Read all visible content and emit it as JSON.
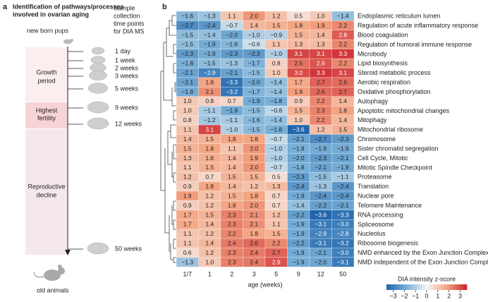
{
  "panel_a": {
    "label": "a",
    "title": [
      "Identification of pathways/processes",
      "involved in ovarian aging"
    ],
    "newborn": "new born pups",
    "sample_label": [
      "Sample",
      "collection",
      "time points",
      "for DIA MS"
    ],
    "timepoints": [
      "1 day",
      "1 week",
      "2 weeks",
      "3 weeks",
      "5 weeks",
      "9 weeks",
      "12 weeks",
      "50 weeks"
    ],
    "phases": [
      [
        "Growth",
        "period"
      ],
      [
        "Highest",
        "fertility"
      ],
      [
        "Reproductive",
        "decline"
      ]
    ],
    "old": "old animals"
  },
  "chart_data": {
    "type": "heatmap",
    "panel_label": "b",
    "x_label": "age (weeks)",
    "categories": [
      "1/7",
      "1",
      "2",
      "3",
      "5",
      "9",
      "12",
      "50"
    ],
    "rows": [
      "Endoplasmic reticulum lumen",
      "Regulation of acute inflammatory response",
      "Blood coagulation",
      "Regulation of humoral immune response",
      "Microbody",
      "Lipid biosynthesis",
      "Steroid metabolic process",
      "Aerobic respiration",
      "Oxidative phosphorylation",
      "Autophagy",
      "Apoptotic mitochondrial changes",
      "Mitophagy",
      "Mitochondrial ribosome",
      "Chromosome",
      "Sister chromatid segregation",
      "Cell Cycle, Mitotic",
      "Mitotic Spindle Checkpoint",
      "Proteasome",
      "Translation",
      "Nuclear pore",
      "Telomere Maintenance",
      "RNA processing",
      "Spliceosome",
      "Nucleolus",
      "Ribosome biogenesis",
      "NMD enhanced by the Exon Junction Complex",
      "NMD independent of the Exon Junction Complex"
    ],
    "values": [
      [
        -1.6,
        -1.3,
        1.1,
        2.0,
        1.2,
        0.5,
        1.0,
        -1.4
      ],
      [
        -2.7,
        -2.4,
        -0.7,
        1.4,
        1.5,
        1.8,
        1.9,
        2.2
      ],
      [
        -1.5,
        -1.4,
        -2.0,
        -1.0,
        -0.9,
        1.5,
        1.4,
        2.8
      ],
      [
        -1.5,
        -1.9,
        -1.6,
        -0.6,
        1.1,
        1.3,
        1.3,
        2.2
      ],
      [
        -2.3,
        -1.9,
        -2.3,
        -2.3,
        -1.0,
        3.1,
        3.1,
        3.3
      ],
      [
        -1.8,
        -1.5,
        -1.3,
        -1.7,
        0.8,
        2.5,
        2.9,
        2.2
      ],
      [
        -2.1,
        -2.9,
        -2.1,
        -1.5,
        1.0,
        3.0,
        3.3,
        3.1
      ],
      [
        -2.1,
        1.8,
        -3.3,
        -2.0,
        -1.4,
        1.7,
        2.7,
        2.6
      ],
      [
        -1.9,
        2.1,
        -3.2,
        -1.7,
        -1.4,
        1.9,
        2.6,
        2.7
      ],
      [
        1.0,
        0.8,
        0.7,
        -1.9,
        -1.8,
        0.9,
        2.2,
        1.4
      ],
      [
        1.0,
        -1.1,
        -1.9,
        -1.5,
        -0.8,
        1.5,
        2.3,
        1.8
      ],
      [
        0.8,
        -1.2,
        -1.1,
        -1.6,
        -1.4,
        1.0,
        2.2,
        1.4
      ],
      [
        1.1,
        3.1,
        -1.0,
        -1.5,
        -1.8,
        -3.6,
        1.2,
        1.5
      ],
      [
        1.4,
        1.5,
        1.8,
        1.8,
        -0.7,
        -2.1,
        -2.7,
        -2.3
      ],
      [
        1.5,
        1.8,
        1.1,
        2.0,
        -1.0,
        -1.8,
        -1.9,
        -1.9
      ],
      [
        1.3,
        1.6,
        1.4,
        1.9,
        -1.0,
        -2.0,
        -2.3,
        -2.1
      ],
      [
        1.1,
        1.5,
        1.4,
        2.0,
        -0.7,
        -1.8,
        -2.1,
        -1.9
      ],
      [
        1.2,
        0.7,
        1.5,
        1.5,
        0.5,
        -2.3,
        -1.5,
        -1.1
      ],
      [
        0.9,
        1.8,
        1.4,
        1.2,
        1.3,
        -2.4,
        -1.3,
        -2.4
      ],
      [
        1.9,
        1.2,
        1.5,
        1.8,
        0.7,
        -1.9,
        -2.4,
        -2.4
      ],
      [
        0.9,
        1.2,
        1.8,
        2.0,
        0.7,
        -1.4,
        -2.2,
        -2.1
      ],
      [
        1.7,
        1.5,
        2.3,
        2.1,
        1.2,
        -2.2,
        -3.6,
        -3.3
      ],
      [
        1.7,
        1.4,
        2.3,
        2.1,
        1.1,
        -1.9,
        -3.1,
        -3.0
      ],
      [
        1.1,
        1.2,
        2.2,
        1.8,
        1.5,
        -1.9,
        -2.9,
        -2.8
      ],
      [
        1.1,
        1.4,
        2.4,
        2.6,
        2.2,
        -2.2,
        -3.1,
        -3.2
      ],
      [
        0.6,
        1.2,
        2.3,
        2.4,
        2.7,
        -1.9,
        -2.1,
        -3.0
      ],
      [
        -1.3,
        1.0,
        2.3,
        2.4,
        2.9,
        -1.9,
        -2.0,
        -3.1
      ]
    ],
    "value_labels": [
      [
        "−1.6",
        "−1.3",
        "1.1",
        "2.0",
        "1.2",
        "0.5",
        "1.0",
        "−1.4"
      ],
      [
        "−2.7",
        "−2.4",
        "−0.7",
        "1.4",
        "1.5",
        "1.8",
        "1.9",
        "2.2"
      ],
      [
        "−1.5",
        "−1.4",
        "−2.0",
        "−1.0",
        "−0.9",
        "1.5",
        "1.4",
        "2.8"
      ],
      [
        "−1.5",
        "−1.9",
        "−1.6",
        "−0.6",
        "1.1",
        "1.3",
        "1.3",
        "2.2"
      ],
      [
        "−2.3",
        "−1.9",
        "−2.3",
        "−2.3",
        "−1.0",
        "3.1",
        "3.1",
        "3.3"
      ],
      [
        "−1.8",
        "−1.5",
        "−1.3",
        "−1.7",
        "0.8",
        "2.5",
        "2.9",
        "2.2"
      ],
      [
        "−2.1",
        "−2.9",
        "−2.1",
        "−1.5",
        "1.0",
        "3.0",
        "3.3",
        "3.1"
      ],
      [
        "−2.1",
        "1.8",
        "−3.3",
        "−2.0",
        "−1.4",
        "1.7",
        "2.7",
        "2.6"
      ],
      [
        "−1.9",
        "2.1",
        "−3.2",
        "−1.7",
        "−1.4",
        "1.9",
        "2.6",
        "2.7"
      ],
      [
        "1.0",
        "0.8",
        "0.7",
        "−1.9",
        "−1.8",
        "0.9",
        "2.2",
        "1.4"
      ],
      [
        "1.0",
        "−1.1",
        "−1.9",
        "−1.5",
        "−0.8",
        "1.5",
        "2.3",
        "1.8"
      ],
      [
        "0.8",
        "−1.2",
        "−1.1",
        "−1.6",
        "−1.4",
        "1.0",
        "2.2",
        "1.4"
      ],
      [
        "1.1",
        "3.1",
        "−1.0",
        "−1.5",
        "−1.8",
        "−3.6",
        "1.2",
        "1.5"
      ],
      [
        "1.4",
        "1.5",
        "1.8",
        "1.8",
        "−0.7",
        "−2.1",
        "−2.7",
        "−2.3"
      ],
      [
        "1.5",
        "1.8",
        "1.1",
        "2.0",
        "−1.0",
        "−1.8",
        "−1.9",
        "−1.9"
      ],
      [
        "1.3",
        "1.6",
        "1.4",
        "1.9",
        "−1.0",
        "−2.0",
        "−2.3",
        "−2.1"
      ],
      [
        "1.1",
        "1.5",
        "1.4",
        "2.0",
        "−0.7",
        "−1.8",
        "−2.1",
        "−1.9"
      ],
      [
        "1.2",
        "0.7",
        "1.5",
        "1.5",
        "0.5",
        "−2.3",
        "−1.5",
        "−1.1"
      ],
      [
        "0.9",
        "1.8",
        "1.4",
        "1.2",
        "1.3",
        "−2.4",
        "−1.3",
        "−2.4"
      ],
      [
        "1.9",
        "1.2",
        "1.5",
        "1.8",
        "0.7",
        "−1.9",
        "−2.4",
        "−2.4"
      ],
      [
        "0.9",
        "1.2",
        "1.8",
        "2.0",
        "0.7",
        "−1.4",
        "−2.2",
        "−2.1"
      ],
      [
        "1.7",
        "1.5",
        "2.3",
        "2.1",
        "1.2",
        "−2.2",
        "−3.6",
        "−3.3"
      ],
      [
        "1.7",
        "1.4",
        "2.3",
        "2.1",
        "1.1",
        "−1.9",
        "−3.1",
        "−3.0"
      ],
      [
        "1.1",
        "1.2",
        "2.2",
        "1.8",
        "1.5",
        "−1.9",
        "−2.9",
        "−2.8"
      ],
      [
        "1.1",
        "1.4",
        "2.4",
        "2.6",
        "2.2",
        "−2.2",
        "−3.1",
        "−3.2"
      ],
      [
        "0.6",
        "1.2",
        "2.3",
        "2.4",
        "2.7",
        "−1.9",
        "−2.1",
        "−3.0"
      ],
      [
        "−1.3",
        "1.0",
        "2.3",
        "2.4",
        "2.9",
        "−1.9",
        "−2.0",
        "−3.1"
      ]
    ],
    "colorbar_label": "DIA intensity z-score",
    "clim": [
      -3.6,
      3.6
    ],
    "colorbar_ticks": [
      {
        "value": -3,
        "label": "−3"
      },
      {
        "value": -2,
        "label": "−2"
      },
      {
        "value": -1,
        "label": "−1"
      },
      0,
      1,
      2,
      3
    ]
  }
}
